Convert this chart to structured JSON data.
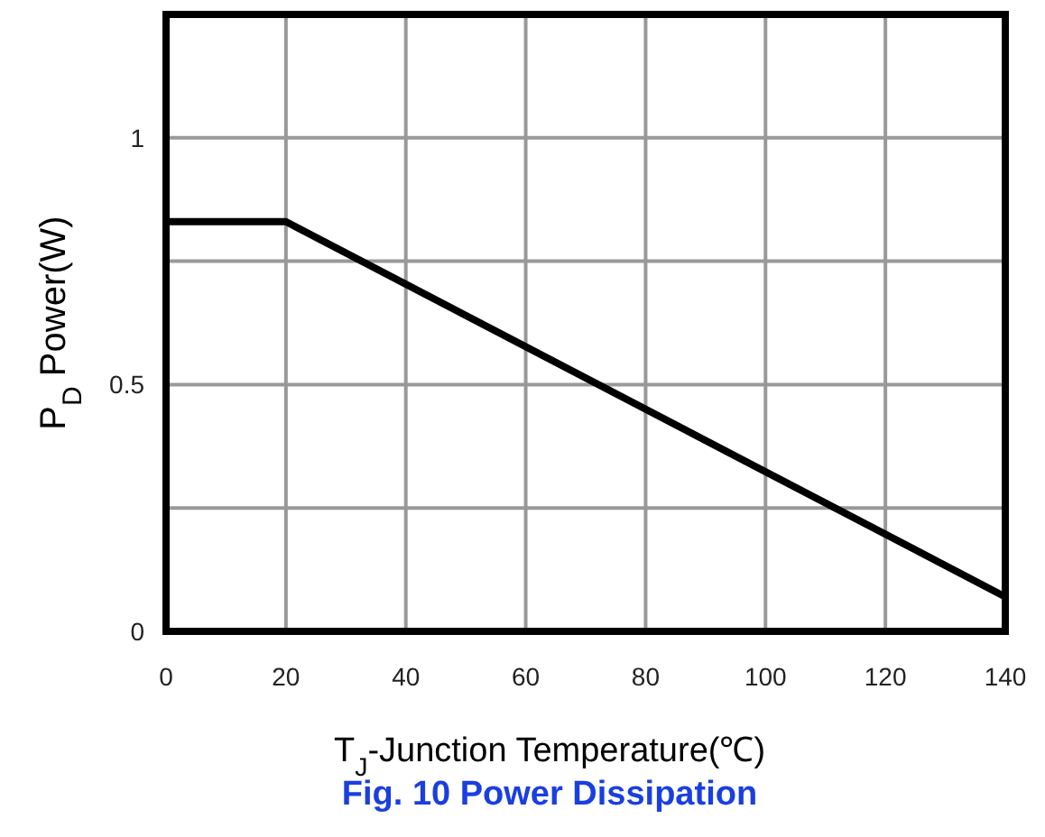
{
  "chart_data": {
    "type": "line",
    "title": "Fig. 10 Power Dissipation",
    "xlabel": "T$_{J}$-Junction Temperature(℃)",
    "ylabel": "P$_{D}$  Power(W)",
    "series": [
      {
        "color": "#000000",
        "x": [
          0,
          20,
          140
        ],
        "values": [
          0.83,
          0.83,
          0.07
        ]
      }
    ],
    "xlim": [
      0,
      140
    ],
    "xticks": [
      0,
      20,
      40,
      60,
      80,
      100,
      120,
      140
    ],
    "ylim": [
      0,
      1.25
    ],
    "yticks": [
      0,
      {
        "value": 0.25,
        "label": null
      },
      0.5,
      {
        "value": 0.75,
        "label": null
      },
      1
    ],
    "grid": true,
    "marker": "none",
    "line_style": "solid"
  }
}
